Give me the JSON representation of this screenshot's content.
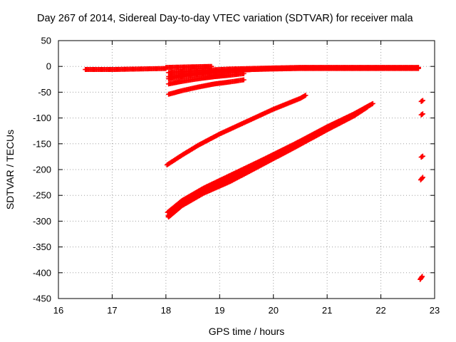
{
  "chart_data": {
    "type": "scatter",
    "title": "Day 267 of 2014, Sidereal Day-to-day VTEC variation (SDTVAR) for receiver mala",
    "xlabel": "GPS time / hours",
    "ylabel": "SDTVAR / TECUs",
    "xlim": [
      16,
      23
    ],
    "ylim": [
      -450,
      50
    ],
    "x_ticks": [
      16,
      17,
      18,
      19,
      20,
      21,
      22,
      23
    ],
    "y_ticks": [
      50,
      0,
      -50,
      -100,
      -150,
      -200,
      -250,
      -300,
      -350,
      -400,
      -450
    ],
    "grid": true,
    "marker": "+",
    "series_color": "#ff0000",
    "tracks": [
      {
        "x": [
          16.5,
          17.0,
          17.5,
          18.0
        ],
        "y": [
          -6,
          -6,
          -5,
          -4
        ]
      },
      {
        "x": [
          18.0,
          18.4,
          18.85
        ],
        "y": [
          -2,
          -1,
          0
        ]
      },
      {
        "x": [
          18.05,
          18.4,
          18.8,
          19.2,
          19.6,
          20.0,
          20.5,
          21.0,
          21.5,
          22.0,
          22.7
        ],
        "y": [
          -20,
          -15,
          -11,
          -8,
          -6,
          -4,
          -3,
          -3,
          -3,
          -3,
          -3
        ]
      },
      {
        "x": [
          18.05,
          18.4,
          18.8,
          19.2,
          19.6,
          20.0,
          20.5,
          21.0,
          21.5,
          22.0,
          22.7
        ],
        "y": [
          -24,
          -18,
          -13,
          -9,
          -6,
          -5,
          -4,
          -4,
          -4,
          -4,
          -4
        ]
      },
      {
        "x": [
          18.05,
          18.4,
          18.8,
          19.2,
          19.6,
          20.0,
          20.5,
          21.0,
          21.5,
          22.0,
          22.7
        ],
        "y": [
          -12,
          -9,
          -7,
          -5,
          -4,
          -3,
          -2,
          -2,
          -2,
          -2,
          -2
        ]
      },
      {
        "x": [
          18.05,
          18.3,
          18.6,
          18.9,
          19.2,
          19.45
        ],
        "y": [
          -34,
          -29,
          -24,
          -20,
          -17,
          -14
        ]
      },
      {
        "x": [
          18.05,
          18.3,
          18.6,
          18.9,
          19.2,
          19.45
        ],
        "y": [
          -54,
          -47,
          -40,
          -34,
          -30,
          -26
        ]
      },
      {
        "x": [
          18.02,
          18.3,
          18.6,
          19.0,
          19.5,
          20.0,
          20.5,
          20.6
        ],
        "y": [
          -191,
          -172,
          -153,
          -131,
          -107,
          -83,
          -62,
          -56
        ]
      },
      {
        "x": [
          18.03,
          18.3,
          18.7,
          19.2,
          19.8,
          20.4,
          21.0,
          21.5,
          21.85
        ],
        "y": [
          -283,
          -260,
          -236,
          -211,
          -181,
          -150,
          -117,
          -92,
          -72
        ]
      },
      {
        "x": [
          18.04,
          18.3,
          18.7,
          19.2,
          19.8,
          20.4,
          21.0,
          21.5,
          21.8
        ],
        "y": [
          -290,
          -267,
          -242,
          -218,
          -186,
          -154,
          -120,
          -93,
          -75
        ]
      },
      {
        "x": [
          18.05,
          18.3,
          18.7,
          19.2,
          19.8,
          20.4,
          21.0,
          21.5,
          21.75
        ],
        "y": [
          -292,
          -270,
          -246,
          -223,
          -190,
          -157,
          -123,
          -96,
          -79
        ]
      },
      {
        "x": [
          22.75,
          22.78
        ],
        "y": [
          -68,
          -66
        ]
      },
      {
        "x": [
          22.75,
          22.78
        ],
        "y": [
          -94,
          -92
        ]
      },
      {
        "x": [
          22.75,
          22.78
        ],
        "y": [
          -176,
          -174
        ]
      },
      {
        "x": [
          22.74,
          22.78
        ],
        "y": [
          -220,
          -215
        ]
      },
      {
        "x": [
          22.73,
          22.77
        ],
        "y": [
          -413,
          -407
        ]
      }
    ]
  }
}
